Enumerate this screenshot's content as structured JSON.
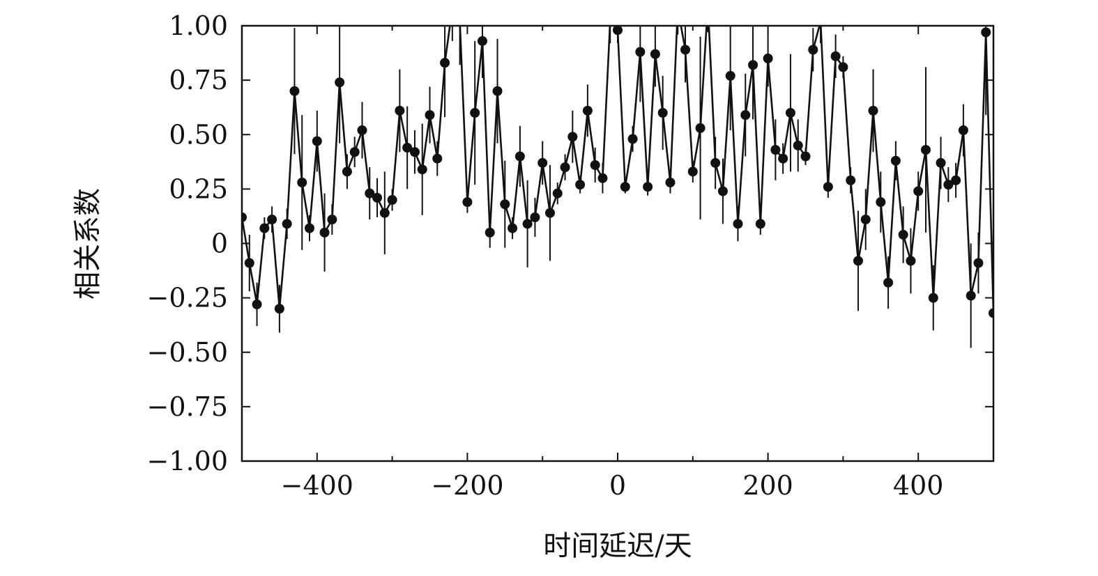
{
  "chart_data": {
    "type": "scatter",
    "title": "",
    "xlabel": "时间延迟/天",
    "ylabel": "相关系数",
    "xlim": [
      -500,
      500
    ],
    "ylim": [
      -1.0,
      1.0
    ],
    "x_ticks": [
      -400,
      -200,
      0,
      200,
      400
    ],
    "x_tick_labels": [
      "−400",
      "−200",
      "0",
      "200",
      "400"
    ],
    "y_ticks": [
      1.0,
      0.75,
      0.5,
      0.25,
      0,
      -0.25,
      -0.5,
      -0.75,
      -1.0
    ],
    "y_tick_labels": [
      "1.00",
      "0.75",
      "0.50",
      "0.25",
      "0",
      "−0.25",
      "−0.50",
      "−0.75",
      "−1.00"
    ],
    "grid": false,
    "legend": "none",
    "line_color": "#111111",
    "marker_color": "#111111",
    "series": [
      {
        "name": "",
        "x": [
          -500,
          -490,
          -480,
          -470,
          -460,
          -450,
          -440,
          -430,
          -420,
          -410,
          -400,
          -390,
          -380,
          -370,
          -360,
          -350,
          -340,
          -330,
          -320,
          -310,
          -300,
          -290,
          -280,
          -270,
          -260,
          -250,
          -240,
          -230,
          -220,
          -210,
          -200,
          -190,
          -180,
          -170,
          -160,
          -150,
          -140,
          -130,
          -120,
          -110,
          -100,
          -90,
          -80,
          -70,
          -60,
          -50,
          -40,
          -30,
          -20,
          -10,
          0,
          10,
          20,
          30,
          40,
          50,
          60,
          70,
          80,
          90,
          100,
          110,
          120,
          130,
          140,
          150,
          160,
          170,
          180,
          190,
          200,
          210,
          220,
          230,
          240,
          250,
          260,
          270,
          280,
          290,
          300,
          310,
          320,
          330,
          340,
          350,
          360,
          370,
          380,
          390,
          400,
          410,
          420,
          430,
          440,
          450,
          460,
          470,
          480,
          490,
          500
        ],
        "y": [
          0.12,
          -0.09,
          -0.28,
          0.07,
          0.11,
          -0.3,
          0.09,
          0.7,
          0.28,
          0.07,
          0.47,
          0.05,
          0.11,
          0.74,
          0.33,
          0.42,
          0.52,
          0.23,
          0.21,
          0.14,
          0.2,
          0.61,
          0.44,
          0.42,
          0.34,
          0.59,
          0.39,
          0.83,
          1.08,
          1.02,
          0.19,
          0.6,
          0.93,
          0.05,
          0.7,
          0.18,
          0.07,
          0.4,
          0.09,
          0.12,
          0.37,
          0.14,
          0.23,
          0.35,
          0.49,
          0.27,
          0.61,
          0.36,
          0.3,
          1.02,
          0.98,
          0.26,
          0.48,
          0.88,
          0.26,
          0.87,
          0.6,
          0.28,
          1.08,
          0.89,
          0.33,
          0.53,
          1.1,
          0.37,
          0.24,
          0.77,
          0.09,
          0.59,
          0.82,
          0.09,
          0.85,
          0.43,
          0.39,
          0.6,
          0.45,
          0.4,
          0.89,
          1.02,
          0.26,
          0.86,
          0.81,
          0.29,
          -0.08,
          0.11,
          0.61,
          0.19,
          -0.18,
          0.38,
          0.04,
          -0.08,
          0.24,
          0.43,
          -0.25,
          0.37,
          0.27,
          0.29,
          0.52,
          -0.24,
          -0.09,
          0.97,
          -0.32
        ],
        "err": [
          0.04,
          0.13,
          0.1,
          0.05,
          0.06,
          0.11,
          0.07,
          0.29,
          0.31,
          0.06,
          0.14,
          0.18,
          0.07,
          0.28,
          0.08,
          0.07,
          0.13,
          0.12,
          0.09,
          0.19,
          0.05,
          0.19,
          0.19,
          0.1,
          0.21,
          0.13,
          0.08,
          0.25,
          0.15,
          0.2,
          0.05,
          0.33,
          0.17,
          0.07,
          0.24,
          0.2,
          0.05,
          0.14,
          0.2,
          0.09,
          0.1,
          0.22,
          0.05,
          0.06,
          0.12,
          0.04,
          0.12,
          0.08,
          0.07,
          0.1,
          0.06,
          0.03,
          0.06,
          0.23,
          0.04,
          0.15,
          0.17,
          0.05,
          0.12,
          0.15,
          0.05,
          0.42,
          0.13,
          0.12,
          0.15,
          0.25,
          0.08,
          0.19,
          0.25,
          0.05,
          0.13,
          0.14,
          0.07,
          0.27,
          0.12,
          0.04,
          0.1,
          0.1,
          0.05,
          0.1,
          0.05,
          0.06,
          0.23,
          0.14,
          0.19,
          0.14,
          0.12,
          0.09,
          0.13,
          0.15,
          0.09,
          0.38,
          0.15,
          0.12,
          0.08,
          0.08,
          0.12,
          0.24,
          0.14,
          0.38,
          0.14
        ]
      }
    ]
  }
}
